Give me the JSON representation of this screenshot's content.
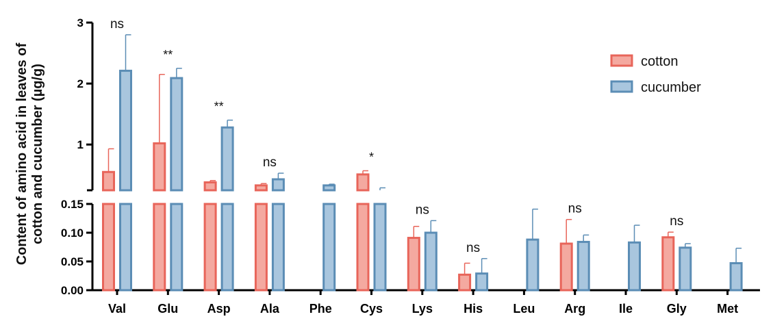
{
  "chart_data": {
    "type": "bar",
    "ylabel": "Content of amino acid in leaves of cotton and cucumber (µg/g)",
    "categories": [
      "Val",
      "Glu",
      "Asp",
      "Ala",
      "Phe",
      "Cys",
      "Lys",
      "His",
      "Leu",
      "Arg",
      "Ile",
      "Gly",
      "Met"
    ],
    "series": [
      {
        "name": "cotton",
        "color": "#f4a9a0",
        "edge": "#e8655a",
        "values": [
          0.55,
          1.02,
          0.38,
          0.33,
          null,
          0.51,
          0.091,
          0.027,
          null,
          0.081,
          null,
          0.092,
          null
        ],
        "errors": [
          0.93,
          2.15,
          0.41,
          0.36,
          null,
          0.57,
          0.111,
          0.047,
          null,
          0.123,
          null,
          0.101,
          null
        ]
      },
      {
        "name": "cucumber",
        "color": "#a9c6de",
        "edge": "#5b8db5",
        "values": [
          2.21,
          2.09,
          1.28,
          0.43,
          0.33,
          0.25,
          0.1,
          0.029,
          0.088,
          0.084,
          0.083,
          0.074,
          0.047
        ],
        "errors": [
          2.8,
          2.25,
          1.4,
          0.53,
          0.35,
          0.29,
          0.121,
          0.055,
          0.141,
          0.096,
          0.113,
          0.081,
          0.073
        ]
      }
    ],
    "significance": [
      "ns",
      "**",
      "**",
      "ns",
      "",
      "*",
      "ns",
      "ns",
      "",
      "ns",
      "",
      "ns",
      ""
    ],
    "y_axis": {
      "upper": {
        "range": [
          0.25,
          3
        ],
        "ticks": [
          "1",
          "2",
          "3"
        ]
      },
      "lower": {
        "range": [
          0,
          0.15
        ],
        "ticks": [
          "0.00",
          "0.05",
          "0.10",
          "0.15"
        ]
      }
    },
    "legend_position": "top-right"
  }
}
